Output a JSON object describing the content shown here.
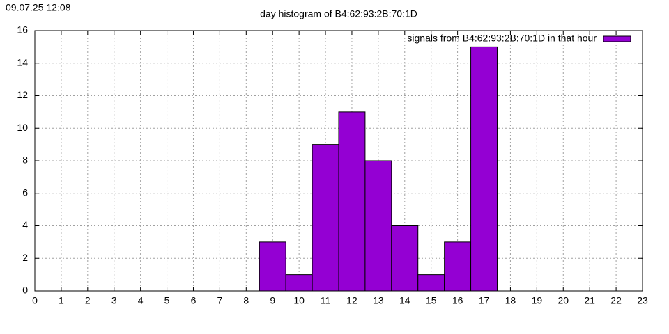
{
  "timestamp": "09.07.25 12:08",
  "chart_data": {
    "type": "bar",
    "title": "day histogram of B4:62:93:2B:70:1D",
    "x": [
      9,
      10,
      11,
      12,
      13,
      14,
      15,
      16,
      17
    ],
    "series": [
      {
        "name": "signals from B4:62:93:2B:70:1D in that hour",
        "color": "#9400d3",
        "values": [
          3,
          1,
          9,
          11,
          8,
          4,
          1,
          3,
          15
        ]
      }
    ],
    "xlim": [
      0,
      23
    ],
    "xticks": [
      0,
      1,
      2,
      3,
      4,
      5,
      6,
      7,
      8,
      9,
      10,
      11,
      12,
      13,
      14,
      15,
      16,
      17,
      18,
      19,
      20,
      21,
      22,
      23
    ],
    "ylim": [
      0,
      16
    ],
    "yticks": [
      0,
      2,
      4,
      6,
      8,
      10,
      12,
      14,
      16
    ],
    "grid": true,
    "legend": "top-right"
  }
}
